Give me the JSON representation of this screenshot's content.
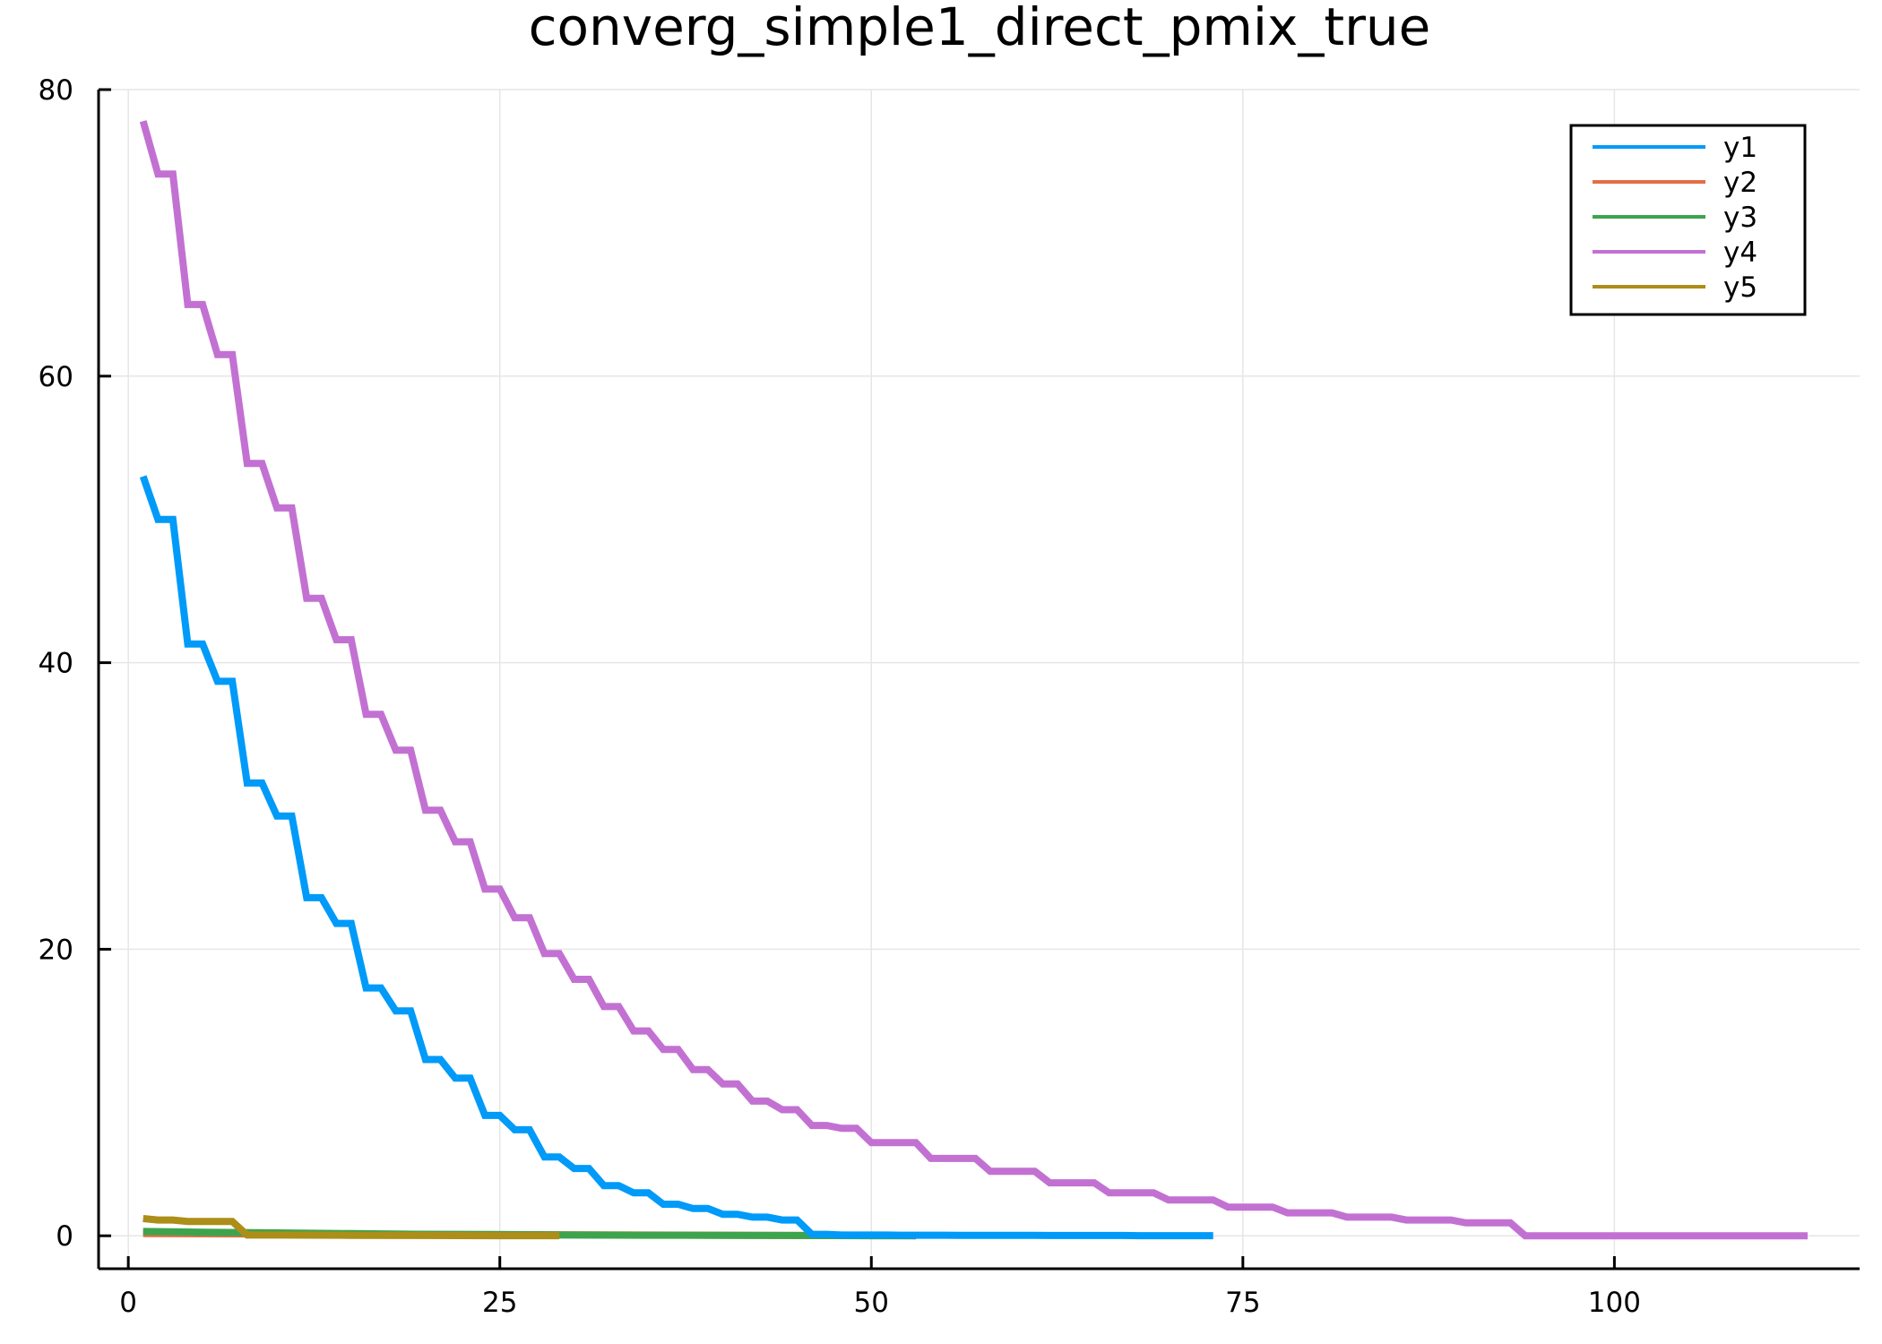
{
  "chart_data": {
    "type": "line",
    "title": "converg_simple1_direct_pmix_true",
    "xlabel": "",
    "ylabel": "",
    "xlim": [
      -2,
      116.5
    ],
    "ylim": [
      -2.3,
      80
    ],
    "x_ticks": [
      0,
      25,
      50,
      75,
      100
    ],
    "y_ticks": [
      0,
      20,
      40,
      60,
      80
    ],
    "grid": true,
    "legend_position": "top-right",
    "series": [
      {
        "name": "y1",
        "color": "#009af9",
        "x": [
          1,
          2,
          3,
          4,
          5,
          6,
          7,
          8,
          9,
          10,
          11,
          12,
          13,
          14,
          15,
          16,
          17,
          18,
          19,
          20,
          21,
          22,
          23,
          24,
          25,
          26,
          27,
          28,
          29,
          30,
          31,
          32,
          33,
          34,
          35,
          36,
          37,
          38,
          39,
          40,
          41,
          42,
          43,
          44,
          45,
          46,
          47,
          48,
          49,
          50,
          51,
          52,
          53,
          54,
          55,
          56,
          57,
          58,
          59,
          60,
          61,
          62,
          63,
          64,
          65,
          66,
          67,
          68,
          69,
          70,
          71,
          72,
          73
        ],
        "y": [
          53,
          50,
          50,
          41.3,
          41.3,
          38.7,
          38.7,
          31.6,
          31.6,
          29.3,
          29.3,
          23.6,
          23.6,
          21.8,
          21.8,
          17.3,
          17.3,
          15.7,
          15.7,
          12.3,
          12.3,
          11,
          11,
          8.4,
          8.4,
          7.4,
          7.4,
          5.5,
          5.5,
          4.7,
          4.7,
          3.5,
          3.5,
          3,
          3,
          2.2,
          2.2,
          1.9,
          1.9,
          1.5,
          1.5,
          1.3,
          1.3,
          1.1,
          1.1,
          0.1,
          0.1,
          0.05,
          0.05,
          0.05,
          0.05,
          0.04,
          0.04,
          0.04,
          0.04,
          0.03,
          0.03,
          0.03,
          0.03,
          0.03,
          0.03,
          0.02,
          0.02,
          0.02,
          0.02,
          0.02,
          0.02,
          0.01,
          0.01,
          0.01,
          0.01,
          0.01,
          0.01
        ]
      },
      {
        "name": "y2",
        "color": "#e26f46",
        "x": [
          1,
          53
        ],
        "y": [
          0.15,
          0
        ]
      },
      {
        "name": "y3",
        "color": "#3da44d",
        "x": [
          1,
          5,
          10,
          15,
          20,
          25,
          30,
          35,
          40,
          45,
          50,
          53
        ],
        "y": [
          0.3,
          0.25,
          0.2,
          0.15,
          0.1,
          0.08,
          0.05,
          0.04,
          0.03,
          0.02,
          0.01,
          0.01
        ]
      },
      {
        "name": "y4",
        "color": "#c271d2",
        "x": [
          1,
          2,
          3,
          4,
          5,
          6,
          7,
          8,
          9,
          10,
          11,
          12,
          13,
          14,
          15,
          16,
          17,
          18,
          19,
          20,
          21,
          22,
          23,
          24,
          25,
          26,
          27,
          28,
          29,
          30,
          31,
          32,
          33,
          34,
          35,
          36,
          37,
          38,
          39,
          40,
          41,
          42,
          43,
          44,
          45,
          46,
          47,
          48,
          49,
          50,
          51,
          52,
          53,
          54,
          55,
          56,
          57,
          58,
          59,
          60,
          61,
          62,
          63,
          64,
          65,
          66,
          67,
          68,
          69,
          70,
          71,
          72,
          73,
          74,
          75,
          76,
          77,
          78,
          79,
          80,
          81,
          82,
          83,
          84,
          85,
          86,
          87,
          88,
          89,
          90,
          91,
          92,
          93,
          94,
          95,
          96,
          97,
          98,
          99,
          100,
          101,
          102,
          103,
          104,
          105,
          106,
          107,
          108,
          109,
          110,
          111,
          112,
          113
        ],
        "y": [
          77.8,
          74.1,
          74.1,
          65,
          65,
          61.5,
          61.5,
          53.9,
          53.9,
          50.8,
          50.8,
          44.5,
          44.5,
          41.6,
          41.6,
          36.4,
          36.4,
          33.9,
          33.9,
          29.7,
          29.7,
          27.5,
          27.5,
          24.2,
          24.2,
          22.2,
          22.2,
          19.7,
          19.7,
          17.9,
          17.9,
          16,
          16,
          14.3,
          14.3,
          13,
          13,
          11.6,
          11.6,
          10.6,
          10.6,
          9.4,
          9.4,
          8.8,
          8.8,
          7.7,
          7.7,
          7.5,
          7.5,
          6.5,
          6.5,
          6.5,
          6.5,
          5.4,
          5.4,
          5.4,
          5.4,
          4.5,
          4.5,
          4.5,
          4.5,
          3.7,
          3.7,
          3.7,
          3.7,
          3,
          3,
          3,
          3,
          2.5,
          2.5,
          2.5,
          2.5,
          2,
          2,
          2,
          2,
          1.6,
          1.6,
          1.6,
          1.6,
          1.3,
          1.3,
          1.3,
          1.3,
          1.1,
          1.1,
          1.1,
          1.1,
          0.9,
          0.9,
          0.9,
          0.9,
          0,
          0,
          0,
          0,
          0,
          0,
          0,
          0,
          0,
          0,
          0,
          0,
          0,
          0,
          0,
          0,
          0,
          0,
          0,
          0
        ]
      },
      {
        "name": "y5",
        "color": "#ac8e18",
        "x": [
          1,
          2,
          3,
          4,
          5,
          6,
          7,
          8,
          9,
          10,
          15,
          20,
          25,
          29
        ],
        "y": [
          1.2,
          1.1,
          1.1,
          1,
          1,
          1,
          1,
          0.05,
          0.05,
          0.05,
          0.03,
          0.02,
          0.01,
          0.01
        ]
      }
    ]
  }
}
